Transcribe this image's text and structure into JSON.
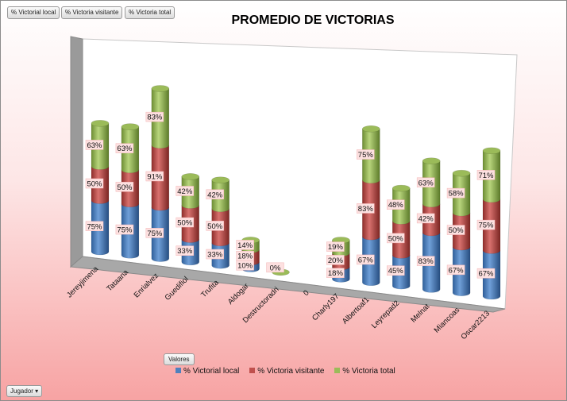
{
  "field_buttons": {
    "local": "% Victorial local",
    "visitante": "% Victoria visitante",
    "total": "% Victoria total"
  },
  "valores_button": "Valores",
  "jugador_button": "Jugador",
  "colors": {
    "local": "#4f81bd",
    "visitante": "#c0504d",
    "total": "#9bbb59"
  },
  "chart_data": {
    "type": "bar",
    "stacked": true,
    "style": "3d-cylinder",
    "title": "PROMEDIO DE VICTORIAS",
    "legend_position": "bottom",
    "categories": [
      "Jereyjimena",
      "Tataana",
      "Enrialvez",
      "Guedifiol",
      "Trufita",
      "Aldogar",
      "Destructoradri",
      "0",
      "Charly197",
      "Albertoaf1",
      "Leyrepad2",
      "Melnat",
      "Miancoas",
      "Oscar2213"
    ],
    "series": [
      {
        "name": "% Victorial local",
        "values": [
          75,
          75,
          75,
          33,
          33,
          10,
          0,
          null,
          18,
          67,
          45,
          83,
          67,
          67
        ],
        "labels": [
          "75%",
          "75%",
          "75%",
          "33%",
          "33%",
          "10%",
          "0%",
          "",
          "18%",
          "67%",
          "45%",
          "83%",
          "67%",
          "67%"
        ]
      },
      {
        "name": "% Victoria visitante",
        "values": [
          50,
          50,
          91,
          50,
          50,
          18,
          null,
          null,
          20,
          83,
          50,
          42,
          50,
          75
        ],
        "labels": [
          "50%",
          "50%",
          "91%",
          "50%",
          "50%",
          "18%",
          "",
          "",
          "20%",
          "83%",
          "50%",
          "42%",
          "50%",
          "75%"
        ]
      },
      {
        "name": "% Victoria total",
        "values": [
          63,
          63,
          83,
          42,
          42,
          14,
          null,
          null,
          19,
          75,
          48,
          63,
          58,
          71
        ],
        "labels": [
          "63%",
          "63%",
          "83%",
          "42%",
          "42%",
          "14%",
          "",
          "",
          "19%",
          "75%",
          "48%",
          "63%",
          "58%",
          "71%"
        ]
      }
    ]
  }
}
